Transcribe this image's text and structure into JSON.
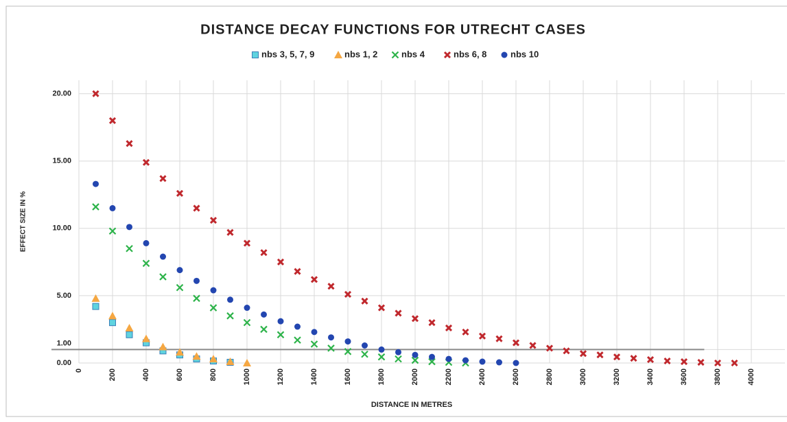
{
  "chart_data": {
    "type": "scatter",
    "title": "DISTANCE DECAY FUNCTIONS FOR UTRECHT CASES",
    "x_label": "DISTANCE IN METRES",
    "y_label": "EFFECT SIZE IN %",
    "xlim": [
      0,
      4200
    ],
    "ylim": [
      0,
      21
    ],
    "xticks": [
      0,
      200,
      400,
      600,
      800,
      1000,
      1200,
      1400,
      1600,
      1800,
      2000,
      2200,
      2400,
      2600,
      2800,
      3000,
      3200,
      3400,
      3600,
      3800,
      4000
    ],
    "yticks": [
      {
        "value": 0,
        "label": "0.00"
      },
      {
        "value": 1,
        "label": "1.00"
      },
      {
        "value": 5,
        "label": "5.00"
      },
      {
        "value": 10,
        "label": "10.00"
      },
      {
        "value": 15,
        "label": "15.00"
      },
      {
        "value": 20,
        "label": "20.00"
      }
    ],
    "grid": true,
    "hline": 1,
    "legend": "top",
    "series": [
      {
        "name": "nbs 3, 5, 7, 9",
        "color": "#5fd3df",
        "marker": "square",
        "x": [
          100,
          200,
          300,
          400,
          500,
          600,
          700,
          800,
          900
        ],
        "values": [
          4.2,
          3.0,
          2.1,
          1.5,
          0.9,
          0.6,
          0.3,
          0.15,
          0.05
        ]
      },
      {
        "name": "nbs 1, 2",
        "color": "#f5a742",
        "marker": "triangle",
        "x": [
          100,
          200,
          300,
          400,
          500,
          600,
          700,
          800,
          900,
          1000
        ],
        "values": [
          4.8,
          3.5,
          2.6,
          1.8,
          1.2,
          0.8,
          0.5,
          0.3,
          0.1,
          0
        ]
      },
      {
        "name": "nbs 4",
        "color": "#2db34a",
        "marker": "x",
        "x": [
          100,
          200,
          300,
          400,
          500,
          600,
          700,
          800,
          900,
          1000,
          1100,
          1200,
          1300,
          1400,
          1500,
          1600,
          1700,
          1800,
          1900,
          2000,
          2100,
          2200,
          2300
        ],
        "values": [
          11.6,
          9.8,
          8.5,
          7.4,
          6.4,
          5.6,
          4.8,
          4.1,
          3.5,
          3.0,
          2.5,
          2.1,
          1.7,
          1.4,
          1.1,
          0.85,
          0.65,
          0.45,
          0.3,
          0.2,
          0.1,
          0.05,
          0
        ]
      },
      {
        "name": "nbs 6, 8",
        "color": "#c0282d",
        "marker": "bigx",
        "x": [
          100,
          200,
          300,
          400,
          500,
          600,
          700,
          800,
          900,
          1000,
          1100,
          1200,
          1300,
          1400,
          1500,
          1600,
          1700,
          1800,
          1900,
          2000,
          2100,
          2200,
          2300,
          2400,
          2500,
          2600,
          2700,
          2800,
          2900,
          3000,
          3100,
          3200,
          3300,
          3400,
          3500,
          3600,
          3700,
          3800,
          3900
        ],
        "values": [
          20.0,
          18.0,
          16.3,
          14.9,
          13.7,
          12.6,
          11.5,
          10.6,
          9.7,
          8.9,
          8.2,
          7.5,
          6.8,
          6.2,
          5.7,
          5.1,
          4.6,
          4.1,
          3.7,
          3.3,
          3.0,
          2.6,
          2.3,
          2.0,
          1.8,
          1.5,
          1.3,
          1.1,
          0.9,
          0.7,
          0.6,
          0.45,
          0.35,
          0.25,
          0.15,
          0.1,
          0.05,
          0,
          0
        ]
      },
      {
        "name": "nbs 10",
        "color": "#2346b0",
        "marker": "circle",
        "x": [
          100,
          200,
          300,
          400,
          500,
          600,
          700,
          800,
          900,
          1000,
          1100,
          1200,
          1300,
          1400,
          1500,
          1600,
          1700,
          1800,
          1900,
          2000,
          2100,
          2200,
          2300,
          2400,
          2500,
          2600
        ],
        "values": [
          13.3,
          11.5,
          10.1,
          8.9,
          7.9,
          6.9,
          6.1,
          5.4,
          4.7,
          4.1,
          3.6,
          3.1,
          2.7,
          2.3,
          1.9,
          1.6,
          1.3,
          1.0,
          0.8,
          0.6,
          0.45,
          0.3,
          0.2,
          0.1,
          0.05,
          0
        ]
      }
    ]
  }
}
